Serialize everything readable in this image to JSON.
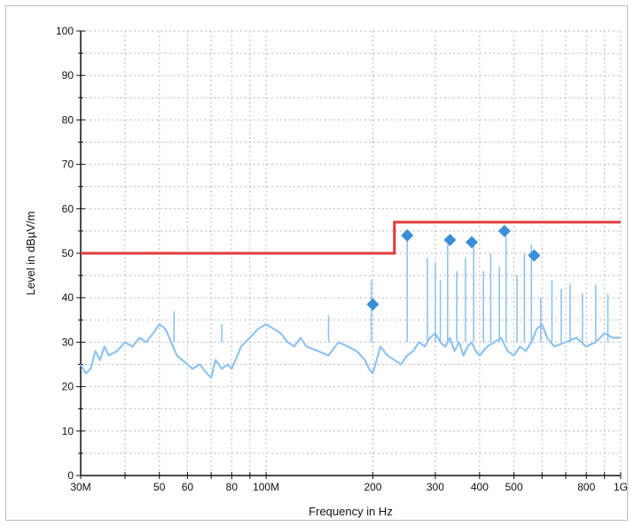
{
  "chart_data": {
    "type": "line",
    "xlabel": "Frequency in Hz",
    "ylabel": "Level in dBµV/m",
    "x_scale": "log",
    "xlim": [
      30,
      1000
    ],
    "ylim": [
      0,
      100
    ],
    "grid": true,
    "x_ticks": [
      {
        "value": 30,
        "label": "30M"
      },
      {
        "value": 50,
        "label": "50"
      },
      {
        "value": 60,
        "label": "60"
      },
      {
        "value": 80,
        "label": "80"
      },
      {
        "value": 100,
        "label": "100M"
      },
      {
        "value": 200,
        "label": "200"
      },
      {
        "value": 300,
        "label": "300"
      },
      {
        "value": 400,
        "label": "400"
      },
      {
        "value": 500,
        "label": "500"
      },
      {
        "value": 800,
        "label": "800"
      },
      {
        "value": 1000,
        "label": "1G"
      }
    ],
    "y_ticks": [
      {
        "value": 0,
        "label": "0"
      },
      {
        "value": 10,
        "label": "10"
      },
      {
        "value": 20,
        "label": "20"
      },
      {
        "value": 30,
        "label": "30"
      },
      {
        "value": 40,
        "label": "40"
      },
      {
        "value": 50,
        "label": "50"
      },
      {
        "value": 60,
        "label": "60"
      },
      {
        "value": 70,
        "label": "70"
      },
      {
        "value": 80,
        "label": "80"
      },
      {
        "value": 90,
        "label": "90"
      },
      {
        "value": 100,
        "label": "100"
      }
    ],
    "series": [
      {
        "kind": "line",
        "color": "#8fc3f0",
        "x": [
          30,
          31,
          32,
          33,
          34,
          35,
          36,
          38,
          40,
          42,
          44,
          46,
          48,
          50,
          52,
          54,
          56,
          58,
          60,
          62,
          65,
          68,
          70,
          72,
          75,
          78,
          80,
          82,
          85,
          90,
          95,
          100,
          105,
          110,
          115,
          120,
          125,
          130,
          140,
          150,
          160,
          170,
          180,
          190,
          195,
          200,
          205,
          210,
          220,
          230,
          240,
          250,
          260,
          270,
          280,
          290,
          300,
          310,
          320,
          330,
          340,
          350,
          360,
          370,
          380,
          390,
          400,
          420,
          440,
          460,
          480,
          500,
          520,
          540,
          560,
          580,
          600,
          620,
          650,
          700,
          750,
          800,
          850,
          900,
          950,
          1000
        ],
        "y": [
          25,
          23,
          24,
          28,
          26,
          29,
          27,
          28,
          30,
          29,
          31,
          30,
          32,
          34,
          33,
          30,
          27,
          26,
          25,
          24,
          25,
          23,
          22,
          26,
          24,
          25,
          24,
          26,
          29,
          31,
          33,
          34,
          33,
          32,
          30,
          29,
          31,
          29,
          28,
          27,
          30,
          29,
          28,
          26,
          24,
          23,
          26,
          29,
          27,
          26,
          25,
          27,
          28,
          30,
          29,
          31,
          32,
          30,
          29,
          31,
          28,
          30,
          27,
          29,
          30,
          28,
          27,
          29,
          30,
          31,
          28,
          27,
          29,
          28,
          30,
          33,
          34,
          31,
          29,
          30,
          31,
          29,
          30,
          32,
          31,
          31
        ]
      },
      {
        "kind": "spikes",
        "color": "#8fc3f0",
        "x": [
          55,
          75,
          150,
          198,
          250,
          285,
          300,
          310,
          325,
          345,
          365,
          385,
          410,
          430,
          455,
          475,
          510,
          535,
          560,
          595,
          640,
          680,
          720,
          780,
          850,
          920
        ],
        "y": [
          37,
          34,
          36,
          44,
          54,
          49,
          48,
          44,
          52,
          46,
          49,
          53,
          46,
          50,
          47,
          55,
          45,
          50,
          52,
          40,
          44,
          42,
          43,
          41,
          43,
          41
        ]
      },
      {
        "kind": "limit",
        "color": "#e03c3c",
        "x": [
          30,
          230,
          230,
          1000
        ],
        "y": [
          50,
          50,
          57,
          57
        ]
      },
      {
        "kind": "markers",
        "color": "#3a8fd6",
        "x": [
          200,
          250,
          330,
          380,
          470,
          570
        ],
        "y": [
          38.5,
          54,
          53,
          52.5,
          55,
          49.5
        ]
      }
    ]
  }
}
